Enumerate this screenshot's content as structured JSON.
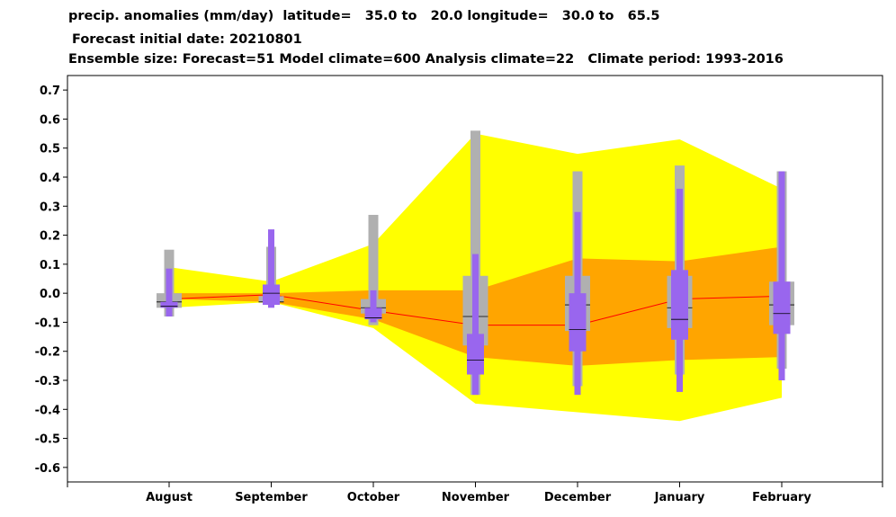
{
  "chart_data": {
    "type": "box",
    "title_lines": [
      "precip. anomalies (mm/day)  latitude=   35.0 to   20.0 longitude=   30.0 to   65.5",
      "Forecast initial date: 20210801",
      "Ensemble size: Forecast=51 Model climate=600 Analysis climate=22   Climate period: 1993-2016"
    ],
    "categories": [
      "August",
      "September",
      "October",
      "November",
      "December",
      "January",
      "February"
    ],
    "ylim": [
      -0.65,
      0.75
    ],
    "yticks": [
      "0.7",
      "0.6",
      "0.5",
      "0.4",
      "0.3",
      "0.2",
      "0.1",
      "0.0",
      "-0.1",
      "-0.2",
      "-0.3",
      "-0.4",
      "-0.5",
      "-0.6"
    ],
    "ytick_values": [
      0.7,
      0.6,
      0.5,
      0.4,
      0.3,
      0.2,
      0.1,
      0.0,
      -0.1,
      -0.2,
      -0.3,
      -0.4,
      -0.5,
      -0.6
    ],
    "analysis_climate_outer": {
      "upper": [
        0.09,
        0.04,
        0.17,
        0.55,
        0.48,
        0.53,
        0.36
      ],
      "lower": [
        -0.05,
        -0.03,
        -0.12,
        -0.38,
        -0.41,
        -0.44,
        -0.36
      ]
    },
    "analysis_climate_inner": {
      "upper": [
        0.0,
        0.0,
        0.01,
        0.01,
        0.12,
        0.11,
        0.16
      ],
      "lower": [
        -0.02,
        -0.03,
        -0.09,
        -0.22,
        -0.25,
        -0.23,
        -0.22
      ]
    },
    "analysis_median": [
      -0.02,
      -0.005,
      -0.06,
      -0.11,
      -0.11,
      -0.02,
      -0.01
    ],
    "model_climate": [
      {
        "min": -0.08,
        "q1": -0.05,
        "median": -0.03,
        "q3": 0.0,
        "max": 0.15
      },
      {
        "min": -0.04,
        "q1": -0.03,
        "median": -0.03,
        "q3": -0.01,
        "max": 0.16
      },
      {
        "min": -0.11,
        "q1": -0.07,
        "median": -0.05,
        "q3": -0.02,
        "max": 0.27
      },
      {
        "min": -0.35,
        "q1": -0.18,
        "median": -0.08,
        "q3": 0.06,
        "max": 0.56
      },
      {
        "min": -0.32,
        "q1": -0.13,
        "median": -0.04,
        "q3": 0.06,
        "max": 0.42
      },
      {
        "min": -0.28,
        "q1": -0.12,
        "median": -0.05,
        "q3": 0.06,
        "max": 0.44
      },
      {
        "min": -0.26,
        "q1": -0.11,
        "median": -0.04,
        "q3": 0.04,
        "max": 0.42
      }
    ],
    "forecast": [
      {
        "min": -0.08,
        "q1": -0.05,
        "median": -0.045,
        "q3": -0.03,
        "max": 0.085
      },
      {
        "min": -0.05,
        "q1": -0.04,
        "median": 0.0,
        "q3": 0.03,
        "max": 0.22
      },
      {
        "min": -0.1,
        "q1": -0.09,
        "median": -0.085,
        "q3": -0.05,
        "max": 0.01
      },
      {
        "min": -0.35,
        "q1": -0.28,
        "median": -0.23,
        "q3": -0.14,
        "max": 0.135
      },
      {
        "min": -0.35,
        "q1": -0.2,
        "median": -0.125,
        "q3": 0.0,
        "max": 0.28
      },
      {
        "min": -0.34,
        "q1": -0.16,
        "median": -0.09,
        "q3": 0.08,
        "max": 0.36
      },
      {
        "min": -0.3,
        "q1": -0.14,
        "median": -0.07,
        "q3": 0.04,
        "max": 0.42
      }
    ],
    "colors": {
      "outer_band": "#ffff00",
      "inner_band": "#ffa500",
      "analysis_line": "#ff0000",
      "model_climate": "#b0b0b0",
      "forecast": "#9966ee",
      "median_line": "#000000"
    }
  }
}
